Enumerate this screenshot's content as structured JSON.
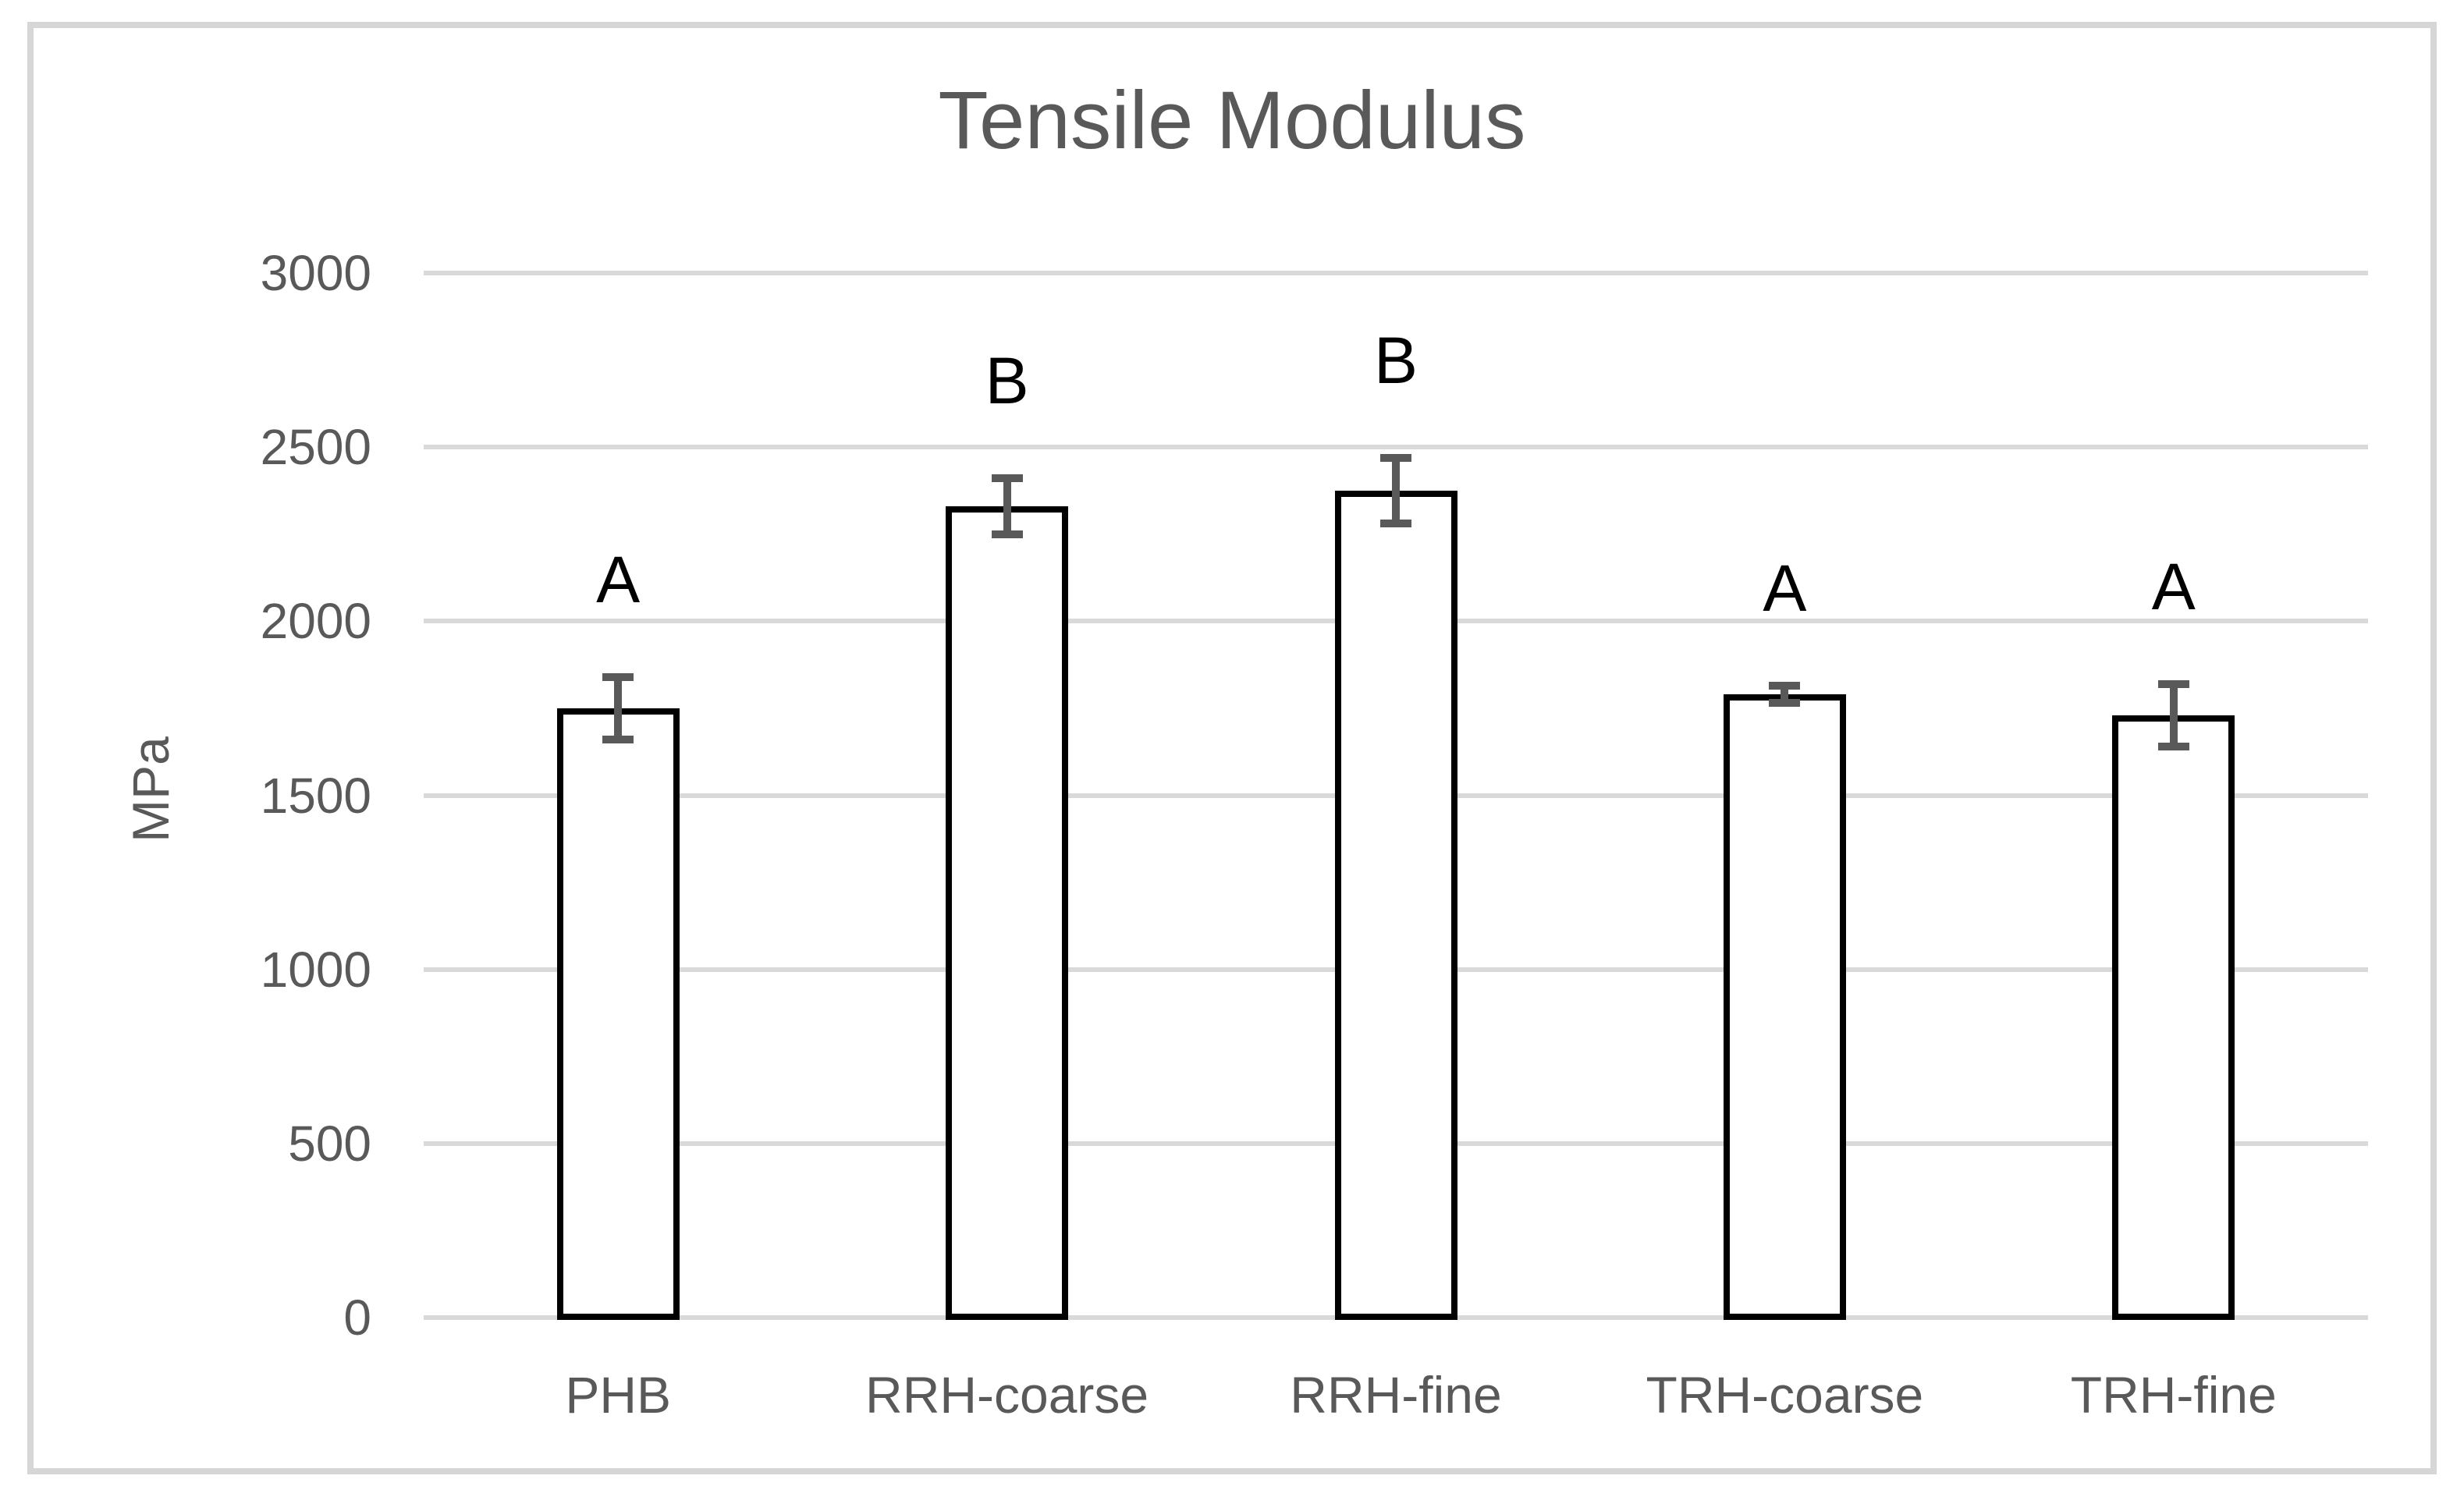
{
  "chart_data": {
    "type": "bar",
    "title": "Tensile Modulus",
    "ylabel": "MPa",
    "categories": [
      "PHB",
      "RRH-coarse",
      "RRH-fine",
      "TRH-coarse",
      "TRH-fine"
    ],
    "series": [
      {
        "name": "Tensile Modulus",
        "values": [
          1750,
          2330,
          2375,
          1790,
          1730
        ],
        "errors": [
          90,
          80,
          95,
          25,
          90
        ]
      }
    ],
    "significance_letters": [
      "A",
      "B",
      "B",
      "A",
      "A"
    ],
    "yticks": [
      0,
      500,
      1000,
      1500,
      2000,
      2500,
      3000
    ],
    "ylim": [
      0,
      3000
    ],
    "grid": true,
    "legend_position": "none",
    "colors": {
      "bar_fill": "#ffffff",
      "bar_border": "#000000",
      "error_bar": "#595959",
      "axis_text": "#595959",
      "annotation_text": "#000000",
      "gridline": "#d9d9d9",
      "figure_border": "#d6d6d6",
      "background": "#ffffff"
    }
  }
}
